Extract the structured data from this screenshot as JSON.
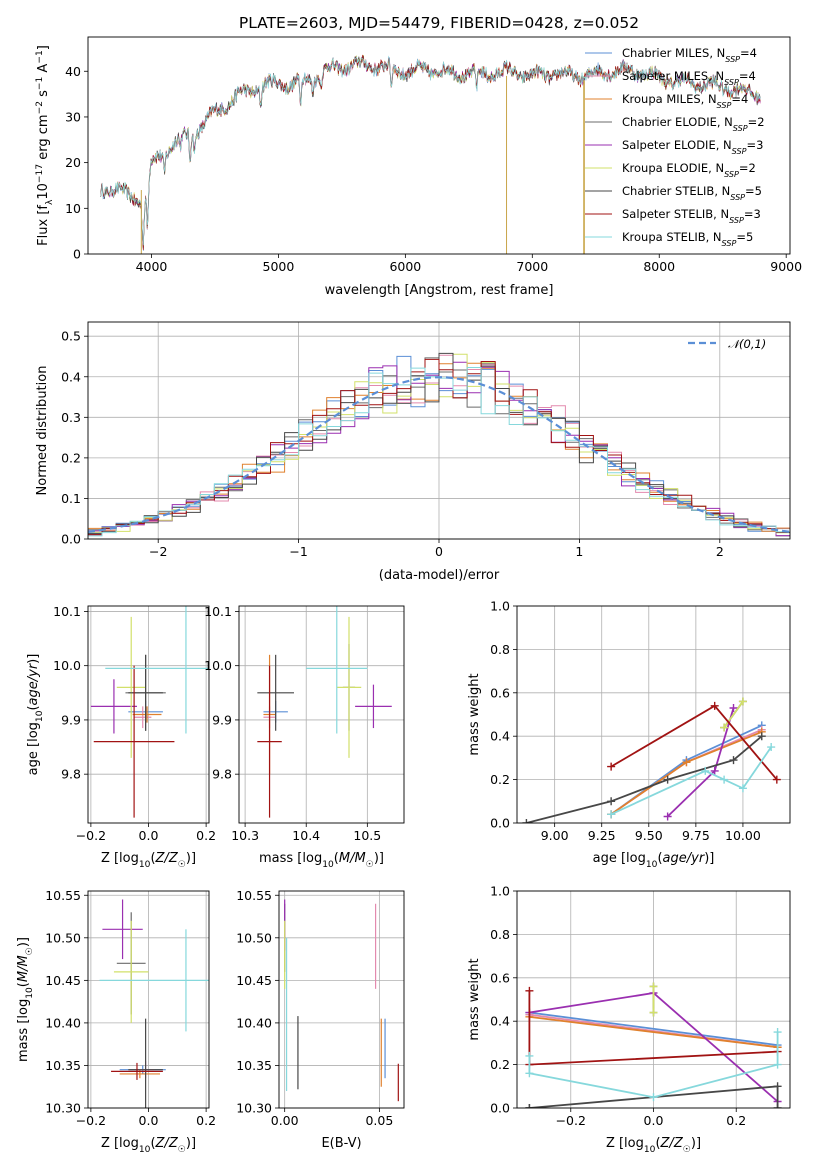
{
  "figure_title": "PLATE=2603, MJD=54479, FIBERID=0428, z=0.052",
  "palette": {
    "Chabrier MILES": "#5b8fd6",
    "Salpeter MILES": "#e38aae",
    "Kroupa MILES": "#e0812e",
    "Chabrier ELODIE": "#6b6b6b",
    "Salpeter ELODIE": "#9a2fb0",
    "Kroupa ELODIE": "#d2e06a",
    "Chabrier STELIB": "#474747",
    "Salpeter STELIB": "#a11313",
    "Kroupa STELIB": "#86d8dc"
  },
  "chart_data": [
    {
      "id": "spectrum",
      "type": "line",
      "title": "PLATE=2603, MJD=54479, FIBERID=0428, z=0.052",
      "xlabel": "wavelength [Angstrom, rest frame]",
      "ylabel": "Flux [f_λ 10^-17 erg cm^-2 s^-1 A^-1]",
      "xlim": [
        3500,
        9030
      ],
      "ylim": [
        0,
        47.5
      ],
      "xticks": [
        4000,
        5000,
        6000,
        7000,
        8000,
        9000
      ],
      "yticks": [
        0,
        10,
        20,
        30,
        40
      ],
      "legend_position": "top-right",
      "legend": [
        {
          "series": "Chabrier MILES",
          "label": "Chabrier MILES, N",
          "sub": "SSP",
          "tail": "=4"
        },
        {
          "series": "Salpeter MILES",
          "label": "Salpeter MILES, N",
          "sub": "SSP",
          "tail": "=4"
        },
        {
          "series": "Kroupa MILES",
          "label": "Kroupa MILES, N",
          "sub": "SSP",
          "tail": "=4"
        },
        {
          "series": "Chabrier ELODIE",
          "label": "Chabrier ELODIE, N",
          "sub": "SSP",
          "tail": "=2"
        },
        {
          "series": "Salpeter ELODIE",
          "label": "Salpeter ELODIE, N",
          "sub": "SSP",
          "tail": "=3"
        },
        {
          "series": "Kroupa ELODIE",
          "label": "Kroupa ELODIE, N",
          "sub": "SSP",
          "tail": "=2"
        },
        {
          "series": "Chabrier STELIB",
          "label": "Chabrier STELIB, N",
          "sub": "SSP",
          "tail": "=5"
        },
        {
          "series": "Salpeter STELIB",
          "label": "Salpeter STELIB, N",
          "sub": "SSP",
          "tail": "=3"
        },
        {
          "series": "Kroupa STELIB",
          "label": "Kroupa STELIB, N",
          "sub": "SSP",
          "tail": "=5"
        }
      ],
      "continuum": [
        [
          3600,
          14
        ],
        [
          3700,
          14.5
        ],
        [
          3800,
          13
        ],
        [
          3900,
          12
        ],
        [
          3950,
          11
        ],
        [
          4000,
          20
        ],
        [
          4100,
          22
        ],
        [
          4200,
          25
        ],
        [
          4300,
          26
        ],
        [
          4400,
          28
        ],
        [
          4500,
          31
        ],
        [
          4600,
          33
        ],
        [
          4700,
          35
        ],
        [
          4800,
          36
        ],
        [
          4900,
          37
        ],
        [
          5000,
          37.5
        ],
        [
          5100,
          37
        ],
        [
          5200,
          38
        ],
        [
          5300,
          39
        ],
        [
          5400,
          40.5
        ],
        [
          5500,
          41
        ],
        [
          5600,
          41.2
        ],
        [
          5700,
          41.5
        ],
        [
          5800,
          41
        ],
        [
          5900,
          40.5
        ],
        [
          6000,
          40
        ],
        [
          6100,
          40.2
        ],
        [
          6200,
          40.3
        ],
        [
          6300,
          40
        ],
        [
          6400,
          39.5
        ],
        [
          6500,
          39.5
        ],
        [
          6600,
          39.5
        ],
        [
          6700,
          39.5
        ],
        [
          6800,
          40
        ],
        [
          6900,
          39.5
        ],
        [
          7000,
          39
        ],
        [
          7100,
          39.2
        ],
        [
          7200,
          39.5
        ],
        [
          7300,
          39
        ],
        [
          7400,
          39
        ],
        [
          7500,
          39.5
        ],
        [
          7600,
          40
        ],
        [
          7700,
          40.2
        ],
        [
          7800,
          40
        ],
        [
          7900,
          39.5
        ],
        [
          8000,
          38.5
        ],
        [
          8100,
          38
        ],
        [
          8200,
          37.5
        ],
        [
          8300,
          37.2
        ],
        [
          8400,
          37
        ],
        [
          8500,
          36.5
        ],
        [
          8600,
          36
        ],
        [
          8700,
          35.5
        ],
        [
          8800,
          35
        ]
      ],
      "absorption": [
        [
          3934,
          10
        ],
        [
          3969,
          10
        ],
        [
          4102,
          4
        ],
        [
          4227,
          3
        ],
        [
          4304,
          6
        ],
        [
          4340,
          4
        ],
        [
          4861,
          4
        ],
        [
          5175,
          6
        ],
        [
          5270,
          3
        ],
        [
          5335,
          3
        ],
        [
          5890,
          5
        ],
        [
          6563,
          4
        ]
      ],
      "spikes": [
        {
          "x": 3920,
          "ymin": 0,
          "ymax": 14
        },
        {
          "x": 6797,
          "ymin": 0,
          "ymax": 39
        },
        {
          "x": 7405,
          "ymin": 0,
          "ymax": 38
        },
        {
          "x": 7410,
          "ymin": 0,
          "ymax": 38
        }
      ]
    },
    {
      "id": "residuals",
      "type": "bar",
      "xlabel": "(data-model)/error",
      "ylabel": "Normed distribution",
      "xlim": [
        -2.5,
        2.5
      ],
      "ylim": [
        0,
        0.535
      ],
      "xticks": [
        -2,
        -1,
        0,
        1,
        2
      ],
      "yticks": [
        0.0,
        0.1,
        0.2,
        0.3,
        0.4,
        0.5
      ],
      "grid": true,
      "bin_width": 0.1,
      "reference": {
        "name": "𝒩(0,1)",
        "mean": 0,
        "sigma": 1
      },
      "legend_position": "top-right",
      "series_order": [
        "Chabrier MILES",
        "Salpeter MILES",
        "Kroupa MILES",
        "Chabrier ELODIE",
        "Salpeter ELODIE",
        "Kroupa ELODIE",
        "Chabrier STELIB",
        "Salpeter STELIB",
        "Kroupa STELIB"
      ]
    },
    {
      "id": "z_age",
      "type": "scatter",
      "xlabel": "Z [log10(Z/Z☉)]",
      "ylabel": "age [log10(age/yr)]",
      "xlim": [
        -0.21,
        0.21
      ],
      "ylim": [
        9.71,
        10.11
      ],
      "xticks": [
        -0.2,
        0.0,
        0.2
      ],
      "yticks": [
        9.8,
        9.9,
        10.0,
        10.1
      ],
      "grid": true,
      "points": [
        {
          "series": "Chabrier MILES",
          "x": -0.01,
          "y": 9.915,
          "xerr": 0.06,
          "yerr": 0.02
        },
        {
          "series": "Salpeter MILES",
          "x": -0.02,
          "y": 9.905,
          "xerr": 0.03,
          "yerr": 0.02
        },
        {
          "series": "Kroupa MILES",
          "x": -0.005,
          "y": 9.91,
          "xerr": 0.05,
          "yerr": 0.015
        },
        {
          "series": "Chabrier ELODIE",
          "x": -0.01,
          "y": 9.95,
          "xerr": 0.07,
          "yerr": 0.07
        },
        {
          "series": "Salpeter ELODIE",
          "x": -0.12,
          "y": 9.925,
          "xerr": 0.08,
          "yerr": 0.05
        },
        {
          "series": "Kroupa ELODIE",
          "x": -0.06,
          "y": 9.96,
          "xerr": 0.05,
          "yerr": 0.13
        },
        {
          "series": "Chabrier STELIB",
          "x": -0.01,
          "y": 9.95,
          "xerr": 0.06,
          "yerr": 0.07
        },
        {
          "series": "Salpeter STELIB",
          "x": -0.05,
          "y": 9.86,
          "xerr": 0.14,
          "yerr": 0.14
        },
        {
          "series": "Kroupa STELIB",
          "x": 0.13,
          "y": 9.995,
          "xerr": 0.28,
          "yerr": 0.12
        }
      ]
    },
    {
      "id": "mass_age",
      "type": "scatter",
      "xlabel": "mass [log10(M/M☉)]",
      "ylabel": "",
      "xlim": [
        10.29,
        10.56
      ],
      "ylim": [
        9.71,
        10.11
      ],
      "xticks": [
        10.3,
        10.4,
        10.5
      ],
      "yticks": [
        9.8,
        9.9,
        10.0,
        10.1
      ],
      "grid": true,
      "points": [
        {
          "series": "Chabrier MILES",
          "x": 10.35,
          "y": 9.915,
          "xerr": 0.02,
          "yerr": 0.02
        },
        {
          "series": "Salpeter MILES",
          "x": 10.34,
          "y": 9.905,
          "xerr": 0.01,
          "yerr": 0.02
        },
        {
          "series": "Kroupa MILES",
          "x": 10.34,
          "y": 9.91,
          "xerr": 0.01,
          "yerr": 0.11
        },
        {
          "series": "Chabrier ELODIE",
          "x": 10.47,
          "y": 9.96,
          "xerr": 0.01,
          "yerr": 0.08
        },
        {
          "series": "Salpeter ELODIE",
          "x": 10.51,
          "y": 9.925,
          "xerr": 0.03,
          "yerr": 0.04
        },
        {
          "series": "Kroupa ELODIE",
          "x": 10.47,
          "y": 9.96,
          "xerr": 0.02,
          "yerr": 0.13
        },
        {
          "series": "Chabrier STELIB",
          "x": 10.35,
          "y": 9.95,
          "xerr": 0.03,
          "yerr": 0.07
        },
        {
          "series": "Salpeter STELIB",
          "x": 10.34,
          "y": 9.86,
          "xerr": 0.02,
          "yerr": 0.14
        },
        {
          "series": "Kroupa STELIB",
          "x": 10.45,
          "y": 9.995,
          "xerr": 0.05,
          "yerr": 0.12
        }
      ]
    },
    {
      "id": "age_weight",
      "type": "line",
      "xlabel": "age [log10(age/yr)]",
      "ylabel": "mass weight",
      "xlim": [
        8.8,
        10.25
      ],
      "ylim": [
        0,
        1
      ],
      "xticks": [
        9.0,
        9.25,
        9.5,
        9.75,
        10.0
      ],
      "xticklabels": [
        "9.00",
        "9.25",
        "9.50",
        "9.75",
        "10.00"
      ],
      "yticks": [
        0.0,
        0.2,
        0.4,
        0.6,
        0.8,
        1.0
      ],
      "grid": true,
      "series": [
        {
          "name": "Chabrier MILES",
          "x": [
            9.3,
            9.7,
            10.1
          ],
          "y": [
            0.04,
            0.29,
            0.45
          ]
        },
        {
          "name": "Salpeter MILES",
          "x": [
            9.3,
            9.7,
            10.1
          ],
          "y": [
            0.04,
            0.28,
            0.43
          ]
        },
        {
          "name": "Kroupa MILES",
          "x": [
            9.3,
            9.7,
            10.1
          ],
          "y": [
            0.04,
            0.28,
            0.42
          ]
        },
        {
          "name": "Chabrier ELODIE",
          "x": [
            9.9,
            10.0
          ],
          "y": [
            0.44,
            0.56
          ]
        },
        {
          "name": "Salpeter ELODIE",
          "x": [
            9.6,
            9.85,
            9.95
          ],
          "y": [
            0.03,
            0.24,
            0.53
          ]
        },
        {
          "name": "Kroupa ELODIE",
          "x": [
            9.9,
            10.0
          ],
          "y": [
            0.44,
            0.56
          ]
        },
        {
          "name": "Chabrier STELIB",
          "x": [
            8.85,
            9.3,
            9.6,
            9.95,
            10.1
          ],
          "y": [
            0.0,
            0.1,
            0.2,
            0.29,
            0.4
          ]
        },
        {
          "name": "Salpeter STELIB",
          "x": [
            9.3,
            9.85,
            10.18
          ],
          "y": [
            0.26,
            0.54,
            0.2
          ]
        },
        {
          "name": "Kroupa STELIB",
          "x": [
            9.3,
            9.8,
            9.9,
            10.0,
            10.15
          ],
          "y": [
            0.04,
            0.24,
            0.2,
            0.16,
            0.35
          ]
        }
      ]
    },
    {
      "id": "z_mass",
      "type": "scatter",
      "xlabel": "Z [log10(Z/Z☉)]",
      "ylabel": "mass [log10(M/M☉)]",
      "xlim": [
        -0.21,
        0.21
      ],
      "ylim": [
        10.3,
        10.555
      ],
      "xticks": [
        -0.2,
        0.0,
        0.2
      ],
      "yticks": [
        10.3,
        10.35,
        10.4,
        10.45,
        10.5,
        10.55
      ],
      "grid": true,
      "points": [
        {
          "series": "Chabrier MILES",
          "x": -0.02,
          "y": 10.345,
          "xerr": 0.08,
          "yerr": 0.005
        },
        {
          "series": "Salpeter MILES",
          "x": -0.01,
          "y": 10.345,
          "xerr": 0.03,
          "yerr": 0.01
        },
        {
          "series": "Kroupa MILES",
          "x": -0.03,
          "y": 10.34,
          "xerr": 0.07,
          "yerr": 0.005
        },
        {
          "series": "Chabrier ELODIE",
          "x": -0.06,
          "y": 10.47,
          "xerr": 0.05,
          "yerr": 0.06
        },
        {
          "series": "Salpeter ELODIE",
          "x": -0.09,
          "y": 10.51,
          "xerr": 0.07,
          "yerr": 0.035
        },
        {
          "series": "Kroupa ELODIE",
          "x": -0.06,
          "y": 10.46,
          "xerr": 0.06,
          "yerr": 0.06
        },
        {
          "series": "Chabrier STELIB",
          "x": -0.01,
          "y": 10.345,
          "xerr": 0.06,
          "yerr": 0.06
        },
        {
          "series": "Salpeter STELIB",
          "x": -0.04,
          "y": 10.343,
          "xerr": 0.09,
          "yerr": 0.01
        },
        {
          "series": "Kroupa STELIB",
          "x": 0.13,
          "y": 10.45,
          "xerr": 0.3,
          "yerr": 0.06
        }
      ]
    },
    {
      "id": "ebv_mass",
      "type": "scatter",
      "xlabel": "E(B-V)",
      "ylabel": "",
      "xlim": [
        -0.003,
        0.063
      ],
      "ylim": [
        10.3,
        10.555
      ],
      "xticks": [
        0.0,
        0.05
      ],
      "xticklabels": [
        "0.00",
        "0.05"
      ],
      "yticks": [
        10.3,
        10.35,
        10.4,
        10.45,
        10.5,
        10.55
      ],
      "grid": true,
      "points": [
        {
          "series": "Chabrier MILES",
          "x": 0.053,
          "y": 10.37,
          "xerr": 0,
          "yerr": 0.035
        },
        {
          "series": "Salpeter MILES",
          "x": 0.048,
          "y": 10.49,
          "xerr": 0,
          "yerr": 0.05
        },
        {
          "series": "Kroupa MILES",
          "x": 0.051,
          "y": 10.365,
          "xerr": 0,
          "yerr": 0.04
        },
        {
          "series": "Chabrier ELODIE",
          "x": 0.0,
          "y": 10.5,
          "xerr": 0,
          "yerr": 0.04
        },
        {
          "series": "Salpeter ELODIE",
          "x": 0.0,
          "y": 10.515,
          "xerr": 0,
          "yerr": 0.03
        },
        {
          "series": "Kroupa ELODIE",
          "x": 0.0,
          "y": 10.48,
          "xerr": 0,
          "yerr": 0.04
        },
        {
          "series": "Chabrier STELIB",
          "x": 0.007,
          "y": 10.365,
          "xerr": 0,
          "yerr": 0.043
        },
        {
          "series": "Salpeter STELIB",
          "x": 0.06,
          "y": 10.33,
          "xerr": 0,
          "yerr": 0.022
        },
        {
          "series": "Kroupa STELIB",
          "x": 0.001,
          "y": 10.41,
          "xerr": 0,
          "yerr": 0.09
        }
      ]
    },
    {
      "id": "z_weight",
      "type": "line",
      "xlabel": "Z [log10(Z/Z☉)]",
      "ylabel": "mass weight",
      "xlim": [
        -0.33,
        0.33
      ],
      "ylim": [
        0,
        1
      ],
      "xticks": [
        -0.2,
        0.0,
        0.2
      ],
      "yticks": [
        0.0,
        0.2,
        0.4,
        0.6,
        0.8,
        1.0
      ],
      "grid": true,
      "series": [
        {
          "name": "Chabrier MILES",
          "x": [
            -0.3,
            0.3
          ],
          "y": [
            0.44,
            0.29
          ]
        },
        {
          "name": "Salpeter MILES",
          "x": [
            -0.3,
            0.3
          ],
          "y": [
            0.43,
            0.28
          ]
        },
        {
          "name": "Kroupa MILES",
          "x": [
            -0.3,
            0.3
          ],
          "y": [
            0.42,
            0.28
          ]
        },
        {
          "name": "Chabrier ELODIE",
          "x": [
            0.0,
            0.0
          ],
          "y": [
            0.44,
            0.56
          ]
        },
        {
          "name": "Salpeter ELODIE",
          "x": [
            -0.3,
            0.0,
            0.3
          ],
          "y": [
            0.44,
            0.53,
            0.03
          ]
        },
        {
          "name": "Kroupa ELODIE",
          "x": [
            0.0,
            0.0
          ],
          "y": [
            0.44,
            0.56
          ]
        },
        {
          "name": "Chabrier STELIB",
          "x": [
            -0.3,
            -0.3,
            0.3,
            0.3
          ],
          "y": [
            0.0,
            0.0,
            0.1,
            0.0
          ]
        },
        {
          "name": "Salpeter STELIB",
          "x": [
            -0.3,
            -0.3,
            0.3
          ],
          "y": [
            0.54,
            0.2,
            0.26
          ]
        },
        {
          "name": "Kroupa STELIB",
          "x": [
            -0.3,
            -0.3,
            0.0,
            0.3,
            0.3
          ],
          "y": [
            0.24,
            0.16,
            0.05,
            0.2,
            0.35
          ]
        }
      ]
    }
  ]
}
